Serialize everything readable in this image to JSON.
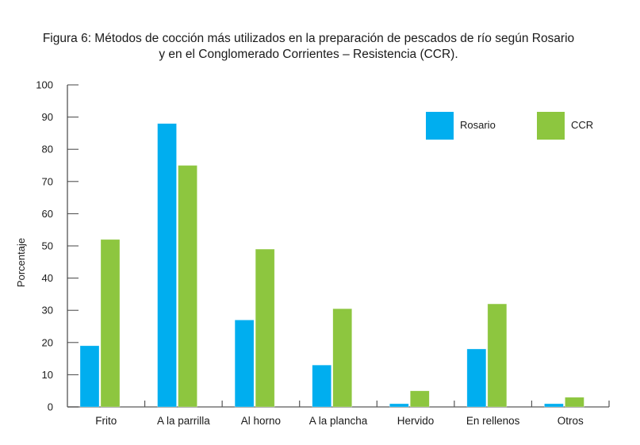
{
  "chart_data": {
    "type": "bar",
    "title": [
      "Figura 6: Métodos de cocción más utilizados en la preparación de pescados de río según Rosario",
      "y en el Conglomerado Corrientes – Resistencia (CCR)."
    ],
    "xlabel": "",
    "ylabel": "Porcentaje",
    "ylim": [
      0,
      100
    ],
    "yticks": [
      0,
      10,
      20,
      30,
      40,
      50,
      60,
      70,
      80,
      90,
      100
    ],
    "categories": [
      "Frito",
      "A la parrilla",
      "Al horno",
      "A la plancha",
      "Hervido",
      "En rellenos",
      "Otros"
    ],
    "series": [
      {
        "name": "Rosario",
        "color": "#00AEEF",
        "values": [
          19,
          88,
          27,
          13,
          1,
          18,
          1
        ]
      },
      {
        "name": "CCR",
        "color": "#8DC63F",
        "values": [
          52,
          75,
          49,
          30.5,
          5,
          32,
          3
        ]
      }
    ],
    "grid": false,
    "legend": "top-right"
  }
}
